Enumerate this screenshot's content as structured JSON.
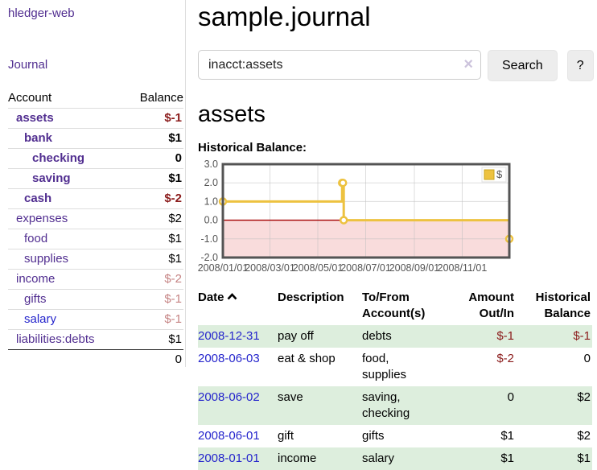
{
  "app": {
    "title": "hledger-web",
    "nav_journal": "Journal"
  },
  "sidebar": {
    "table": {
      "col_account": "Account",
      "col_balance": "Balance",
      "rows": [
        {
          "name": "assets",
          "balance": "$-1",
          "emph": "bold",
          "indent": "d1",
          "name_class": "",
          "bal_class": "neg-strong"
        },
        {
          "name": "bank",
          "balance": "$1",
          "emph": "bold",
          "indent": "d2",
          "name_class": "",
          "bal_class": ""
        },
        {
          "name": "checking",
          "balance": "0",
          "emph": "bold",
          "indent": "d3",
          "name_class": "",
          "bal_class": ""
        },
        {
          "name": "saving",
          "balance": "$1",
          "emph": "bold",
          "indent": "d3",
          "name_class": "",
          "bal_class": ""
        },
        {
          "name": "cash",
          "balance": "$-2",
          "emph": "bold",
          "indent": "d2",
          "name_class": "",
          "bal_class": "neg-strong"
        },
        {
          "name": "expenses",
          "balance": "$2",
          "emph": "",
          "indent": "d1",
          "name_class": "",
          "bal_class": ""
        },
        {
          "name": "food",
          "balance": "$1",
          "emph": "",
          "indent": "d2",
          "name_class": "",
          "bal_class": ""
        },
        {
          "name": "supplies",
          "balance": "$1",
          "emph": "",
          "indent": "d2",
          "name_class": "",
          "bal_class": ""
        },
        {
          "name": "income",
          "balance": "$-2",
          "emph": "",
          "indent": "d1",
          "name_class": "",
          "bal_class": "neg-faded"
        },
        {
          "name": "gifts",
          "balance": "$-1",
          "emph": "",
          "indent": "d2",
          "name_class": "",
          "bal_class": "neg-faded"
        },
        {
          "name": "salary",
          "balance": "$-1",
          "emph": "",
          "indent": "d2",
          "name_class": "link-blue",
          "bal_class": "neg-faded"
        },
        {
          "name": "liabilities:debts",
          "balance": "$1",
          "emph": "",
          "indent": "d1",
          "name_class": "",
          "bal_class": ""
        }
      ],
      "total": "0"
    }
  },
  "header": {
    "title": "sample.journal"
  },
  "search": {
    "value": "inacct:assets",
    "clear_icon": "×",
    "button": "Search",
    "help_button": "?"
  },
  "account_page": {
    "heading": "assets",
    "chart_label": "Historical Balance:"
  },
  "chart_data": {
    "type": "line",
    "step": true,
    "legend": "$",
    "legend_position": "top-right",
    "grid": true,
    "xlim": [
      0,
      365
    ],
    "ylim": [
      -2,
      3
    ],
    "y_ticks": [
      3.0,
      2.0,
      1.0,
      0.0,
      -1.0,
      -2.0
    ],
    "x_ticks": [
      {
        "day": 0,
        "label": "2008/01/01"
      },
      {
        "day": 60,
        "label": "2008/03/01"
      },
      {
        "day": 121,
        "label": "2008/05/01"
      },
      {
        "day": 182,
        "label": "2008/07/01"
      },
      {
        "day": 244,
        "label": "2008/09/01"
      },
      {
        "day": 305,
        "label": "2008/11/01"
      }
    ],
    "series": [
      {
        "name": "$",
        "color": "#edc240",
        "points": [
          {
            "date": "2008-01-01",
            "day": 0,
            "value": 1
          },
          {
            "date": "2008-06-01",
            "day": 152,
            "value": 2
          },
          {
            "date": "2008-06-02",
            "day": 153,
            "value": 2
          },
          {
            "date": "2008-06-03",
            "day": 154,
            "value": 0
          },
          {
            "date": "2008-12-31",
            "day": 365,
            "value": -1
          }
        ]
      }
    ],
    "negative_fill": "#f9dcdc",
    "zero_line_color": "#a40000",
    "border_color": "#545454",
    "tick_label_color": "#545454"
  },
  "register": {
    "columns": {
      "date": "Date",
      "sort_icon": "sort-ascending",
      "description": "Description",
      "tofrom": "To/From Account(s)",
      "amount": "Amount Out/In",
      "balance": "Historical Balance"
    },
    "rows": [
      {
        "date": "2008-12-31",
        "description": "pay off",
        "accounts": "debts",
        "amount": "$-1",
        "balance": "$-1",
        "row_class": "shaded",
        "amount_class": "neg-strong",
        "balance_class": "neg-strong"
      },
      {
        "date": "2008-06-03",
        "description": "eat & shop",
        "accounts": "food, supplies",
        "amount": "$-2",
        "balance": "0",
        "row_class": "",
        "amount_class": "neg-strong",
        "balance_class": ""
      },
      {
        "date": "2008-06-02",
        "description": "save",
        "accounts": "saving, checking",
        "amount": "0",
        "balance": "$2",
        "row_class": "shaded",
        "amount_class": "",
        "balance_class": ""
      },
      {
        "date": "2008-06-01",
        "description": "gift",
        "accounts": "gifts",
        "amount": "$1",
        "balance": "$2",
        "row_class": "",
        "amount_class": "",
        "balance_class": ""
      },
      {
        "date": "2008-01-01",
        "description": "income",
        "accounts": "salary",
        "amount": "$1",
        "balance": "$1",
        "row_class": "shaded",
        "amount_class": "",
        "balance_class": ""
      }
    ]
  },
  "colors": {
    "accent_purple": "#512e90",
    "link_blue": "#2525cc",
    "negative_strong": "#8b1c1c",
    "negative_faded": "#c58383",
    "row_shade_green": "#ddeedd",
    "chart_line_yellow": "#edc240"
  }
}
